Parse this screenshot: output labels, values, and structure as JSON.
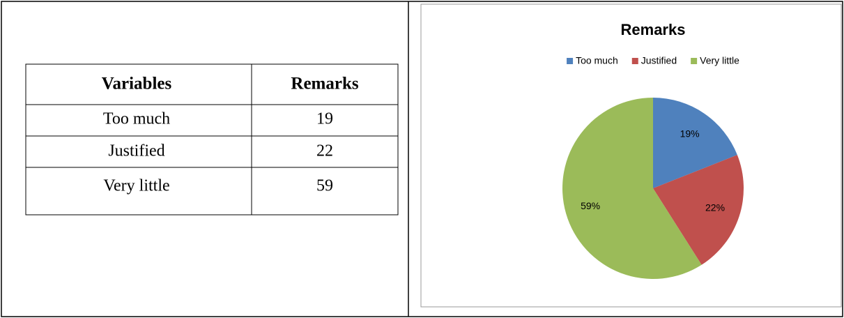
{
  "table": {
    "header": [
      "Variables",
      "Remarks"
    ],
    "rows": [
      [
        "Too much",
        "19"
      ],
      [
        "Justified",
        "22"
      ],
      [
        "Very little",
        "59"
      ]
    ]
  },
  "chart_data": {
    "type": "pie",
    "title": "Remarks",
    "categories": [
      "Too much",
      "Justified",
      "Very little"
    ],
    "values": [
      19,
      22,
      59
    ],
    "value_labels": [
      "19%",
      "22%",
      "59%"
    ],
    "colors": [
      "#4f81bd",
      "#c0504d",
      "#9bbb59"
    ],
    "legend": "top"
  }
}
